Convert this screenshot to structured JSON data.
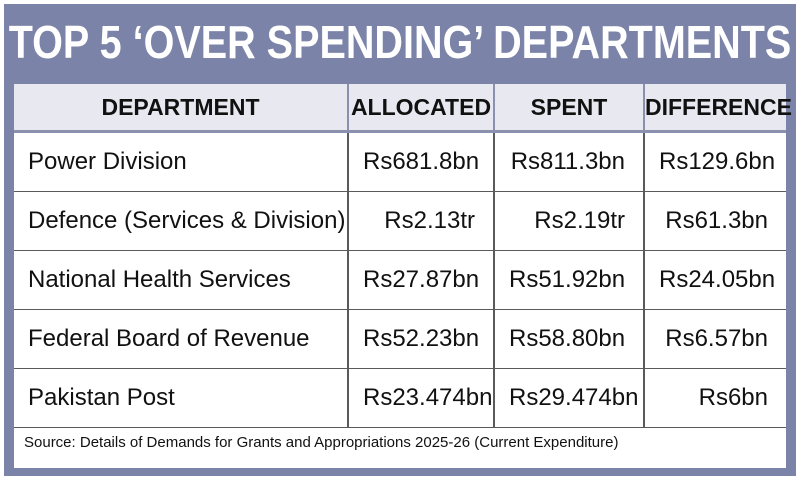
{
  "title": "TOP 5 ‘OVER SPENDING’ DEPARTMENTS",
  "chart_data": {
    "type": "table",
    "title": "TOP 5 ‘OVER SPENDING’ DEPARTMENTS",
    "columns": [
      "DEPARTMENT",
      "ALLOCATED",
      "SPENT",
      "DIFFERENCE"
    ],
    "rows": [
      [
        "Power Division",
        "Rs681.8bn",
        "Rs811.3bn",
        "Rs129.6bn"
      ],
      [
        "Defence (Services & Division)",
        "Rs2.13tr",
        "Rs2.19tr",
        "Rs61.3bn"
      ],
      [
        "National Health Services",
        "Rs27.87bn",
        "Rs51.92bn",
        "Rs24.05bn"
      ],
      [
        "Federal Board of Revenue",
        "Rs52.23bn",
        "Rs58.80bn",
        "Rs6.57bn"
      ],
      [
        "Pakistan Post",
        "Rs23.474bn",
        "Rs29.474bn",
        "Rs6bn"
      ]
    ]
  },
  "source": "Source: Details of Demands for Grants and Appropriations 2025-26 (Current Expenditure)",
  "colors": {
    "frame": "#7b84a8",
    "header_bg": "#e7e8f0",
    "text": "#111111"
  }
}
